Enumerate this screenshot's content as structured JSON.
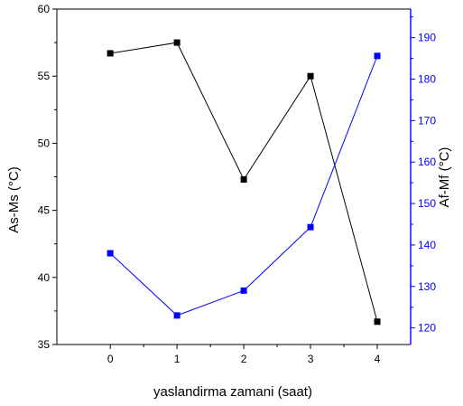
{
  "chart_data": {
    "type": "line",
    "xlabel": "yaslandirma zamani (saat)",
    "ylabel_left": "As-Ms (°C)",
    "ylabel_right": "Af-Mf (°C)",
    "x": [
      0,
      1,
      2,
      3,
      4
    ],
    "xlim": [
      -0.8,
      4.5
    ],
    "ylim_left": [
      35,
      60
    ],
    "ylim_right": [
      116,
      196.9
    ],
    "x_ticks": [
      0,
      1,
      2,
      3,
      4
    ],
    "y_ticks_left": [
      35,
      40,
      45,
      50,
      55,
      60
    ],
    "y_ticks_right": [
      120,
      130,
      140,
      150,
      160,
      170,
      180,
      190
    ],
    "grid": false,
    "legend": "none",
    "series": [
      {
        "axis": "left",
        "color": "#000000",
        "marker": "square",
        "values": [
          56.7,
          57.5,
          47.3,
          55.0,
          36.7
        ]
      },
      {
        "axis": "right",
        "color": "#0000ff",
        "marker": "square",
        "values": [
          138.0,
          123.0,
          129.0,
          144.3,
          185.6
        ]
      }
    ],
    "axis_colors": {
      "left": "#000000",
      "right": "#0000ff"
    }
  }
}
